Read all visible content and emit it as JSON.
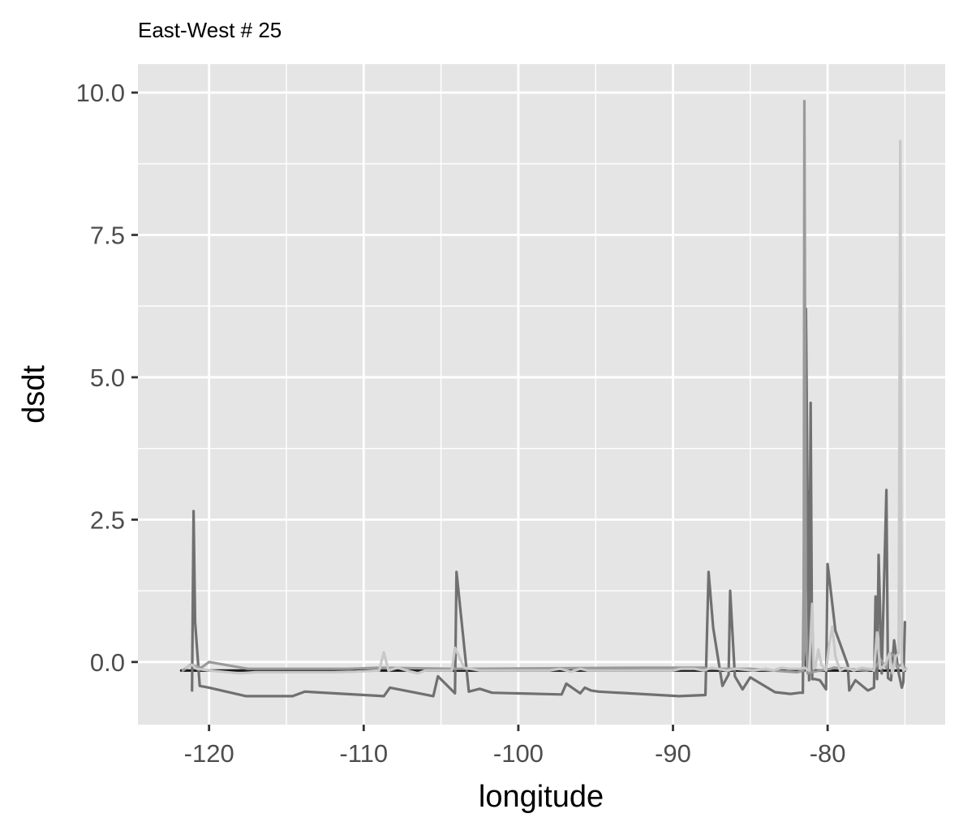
{
  "chart_data": {
    "type": "line",
    "title": "East-West # 25",
    "xlabel": "longitude",
    "ylabel": "dsdt",
    "xlim": [
      -124.6,
      -72.4
    ],
    "ylim": [
      -1.1,
      10.5
    ],
    "x_ticks": [
      -120,
      -110,
      -100,
      -90,
      -80
    ],
    "x_tick_labels": [
      "-120",
      "-110",
      "-100",
      "-90",
      "-80"
    ],
    "y_ticks": [
      0.0,
      2.5,
      5.0,
      7.5,
      10.0
    ],
    "y_tick_labels": [
      "0.0",
      "2.5",
      "5.0",
      "7.5",
      "10.0"
    ],
    "grid": true,
    "legend": "none",
    "colors": {
      "panel": "#e5e5e5",
      "grid": "#ffffff",
      "tick_text": "#4d4d4d"
    },
    "series": [
      {
        "color": "#1a1a1a",
        "x": [
          -121.8,
          -121.1,
          -120.6,
          -115.0,
          -110.0,
          -104.1,
          -100.0,
          -95.0,
          -89.6,
          -87.7,
          -86.4,
          -85.0,
          -81.5,
          -81.3,
          -81.0,
          -80.5,
          -79.9,
          -78.0,
          -77.0,
          -76.5,
          -75.8,
          -75.3,
          -75.0
        ],
        "y": [
          -0.15,
          -0.15,
          -0.15,
          -0.15,
          -0.15,
          -0.15,
          -0.15,
          -0.15,
          -0.15,
          -0.15,
          -0.15,
          -0.15,
          -0.15,
          3.0,
          -0.15,
          -0.15,
          -0.15,
          -0.15,
          -0.15,
          -0.15,
          -0.15,
          -0.15,
          -0.15
        ]
      },
      {
        "color": "#707070",
        "x": [
          -121.1,
          -121.0,
          -120.9,
          -120.6,
          -120.0,
          -117.6,
          -114.6,
          -113.8,
          -108.7,
          -108.3,
          -105.5,
          -105.2,
          -104.1,
          -104.0,
          -103.2,
          -102.5,
          -101.7,
          -97.2,
          -96.9,
          -96.0,
          -95.7,
          -95.3,
          -94.8,
          -89.6,
          -87.9,
          -87.7,
          -87.4,
          -86.8,
          -86.4,
          -86.3,
          -86.0,
          -85.5,
          -85.0,
          -83.4,
          -82.4,
          -81.8,
          -81.6,
          -81.4,
          -81.2,
          -81.1,
          -81.0,
          -80.8,
          -80.5,
          -80.1,
          -80.0,
          -79.9,
          -79.5,
          -78.7,
          -78.6,
          -78.2,
          -77.4,
          -77.0,
          -76.9,
          -76.8,
          -76.7,
          -76.5,
          -76.2,
          -76.1,
          -75.9,
          -75.7,
          -75.4,
          -75.2,
          -75.1,
          -75.0
        ],
        "y": [
          -0.5,
          2.65,
          0.7,
          -0.42,
          -0.45,
          -0.6,
          -0.6,
          -0.52,
          -0.6,
          -0.45,
          -0.6,
          -0.25,
          -0.55,
          1.58,
          -0.52,
          -0.47,
          -0.54,
          -0.57,
          -0.38,
          -0.55,
          -0.45,
          -0.5,
          -0.52,
          -0.6,
          -0.58,
          1.58,
          0.6,
          -0.42,
          -0.22,
          1.25,
          -0.25,
          -0.48,
          -0.27,
          -0.53,
          -0.56,
          -0.54,
          -0.54,
          6.2,
          -0.32,
          4.55,
          -0.3,
          -0.3,
          -0.32,
          -0.48,
          1.72,
          1.5,
          0.55,
          -0.05,
          -0.5,
          -0.32,
          -0.5,
          -0.45,
          1.15,
          -0.3,
          1.88,
          -0.2,
          3.02,
          -0.28,
          -0.32,
          0.38,
          -0.2,
          -0.45,
          -0.35,
          0.7
        ]
      },
      {
        "color": "#9a9a9a",
        "x": [
          -121.7,
          -121.2,
          -120.5,
          -120.0,
          -117.5,
          -111.0,
          -109.0,
          -104.2,
          -103.5,
          -92.0,
          -88.0,
          -87.8,
          -87.2,
          -85.0,
          -82.0,
          -81.55,
          -81.5,
          -81.4,
          -81.3,
          -81.1,
          -80.5,
          -79.8,
          -79.6,
          -77.5,
          -77.0,
          -76.8,
          -76.6,
          -76.2,
          -76.1,
          -75.9,
          -75.7,
          -75.5,
          -75.3,
          -75.0
        ],
        "y": [
          -0.15,
          -0.05,
          -0.1,
          0.0,
          -0.12,
          -0.12,
          -0.1,
          -0.12,
          -0.12,
          -0.1,
          -0.1,
          -0.12,
          -0.12,
          -0.12,
          -0.18,
          -0.15,
          9.85,
          0.3,
          -0.2,
          -0.18,
          -0.15,
          -0.12,
          -0.1,
          -0.15,
          -0.12,
          -0.05,
          0.05,
          -0.1,
          0.05,
          0.15,
          0.1,
          -0.1,
          -0.05,
          -0.1
        ]
      },
      {
        "color": "#c8c8c8",
        "x": [
          -121.5,
          -121.1,
          -120.8,
          -120.0,
          -118.0,
          -117.0,
          -112.0,
          -110.5,
          -109.0,
          -108.7,
          -108.4,
          -107.8,
          -107.2,
          -106.5,
          -106.0,
          -104.3,
          -104.1,
          -103.5,
          -102.5,
          -98.0,
          -97.3,
          -96.6,
          -96.0,
          -95.5,
          -90.0,
          -89.5,
          -88.6,
          -88.0,
          -87.5,
          -86.5,
          -86.0,
          -84.8,
          -84.0,
          -83.5,
          -83.0,
          -82.5,
          -81.8,
          -81.5,
          -81.2,
          -81.0,
          -80.9,
          -80.8,
          -80.6,
          -80.4,
          -80.1,
          -79.9,
          -79.7,
          -79.5,
          -79.2,
          -78.8,
          -78.3,
          -77.8,
          -77.3,
          -77.0,
          -76.8,
          -76.6,
          -76.3,
          -76.0,
          -75.8,
          -75.6,
          -75.4,
          -75.3,
          -75.2,
          -75.1,
          -74.9
        ],
        "y": [
          -0.1,
          -0.05,
          -0.12,
          -0.15,
          -0.2,
          -0.18,
          -0.18,
          -0.17,
          -0.15,
          0.17,
          -0.15,
          -0.1,
          -0.15,
          -0.2,
          -0.15,
          -0.15,
          0.25,
          -0.1,
          -0.15,
          -0.15,
          -0.12,
          -0.17,
          -0.12,
          -0.15,
          -0.15,
          -0.12,
          -0.12,
          -0.15,
          -0.1,
          -0.15,
          -0.12,
          -0.15,
          -0.12,
          -0.15,
          -0.1,
          -0.12,
          -0.12,
          -0.1,
          -0.15,
          1.02,
          -0.12,
          -0.1,
          0.22,
          -0.05,
          -0.15,
          0.3,
          0.62,
          0.1,
          -0.15,
          -0.1,
          -0.15,
          -0.1,
          -0.12,
          -0.15,
          0.52,
          -0.12,
          -0.05,
          0.15,
          -0.2,
          0.1,
          0.15,
          9.15,
          0.0,
          -0.15,
          -0.12
        ]
      }
    ]
  }
}
